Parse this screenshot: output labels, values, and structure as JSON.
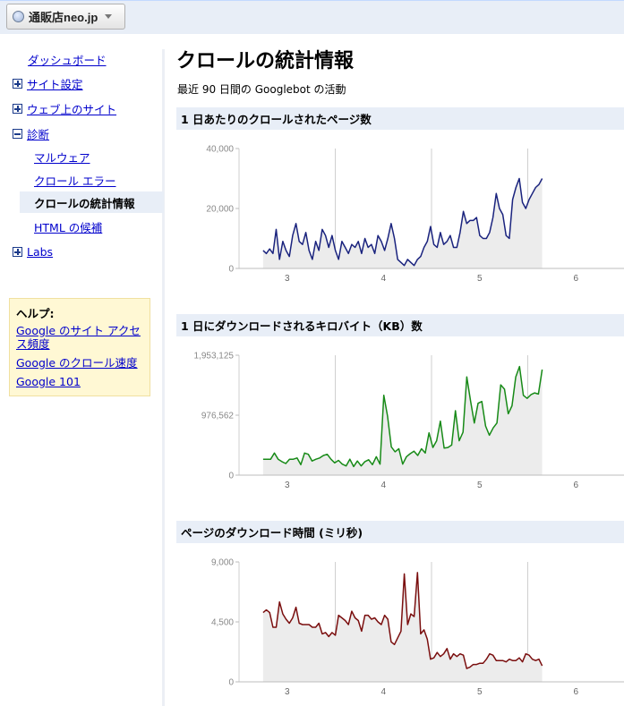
{
  "header": {
    "site_name": "通販店neo.jp"
  },
  "nav": {
    "dashboard": "ダッシュボード",
    "site_settings": "サイト設定",
    "on_web": "ウェブ上のサイト",
    "diagnostics": "診断",
    "malware": "マルウェア",
    "crawl_errors": "クロール エラー",
    "crawl_stats": "クロールの統計情報",
    "html_suggestions": "HTML の候補",
    "labs": "Labs"
  },
  "help": {
    "title": "ヘルプ:",
    "links": [
      "Google のサイト アクセス頻度",
      "Google のクロール速度",
      "Google 101"
    ]
  },
  "main": {
    "title": "クロールの統計情報",
    "subtitle": "最近 90 日間の Googlebot の活動"
  },
  "colors": {
    "pages": "#1a237e",
    "kb": "#178a17",
    "time": "#7a0e0e",
    "fill": "#ececec"
  },
  "chart_data": [
    {
      "type": "area",
      "title": "1 日あたりのクロールされたページ数",
      "y_ticks": [
        "0",
        "20,000",
        "40,000"
      ],
      "ylim": [
        0,
        40000
      ],
      "x_ticks": [
        "3",
        "4",
        "5",
        "6"
      ],
      "xlim": [
        2.75,
        5.65
      ],
      "color_key": "pages",
      "values": [
        6000,
        5000,
        6500,
        5000,
        13000,
        3000,
        9000,
        6000,
        4000,
        11000,
        15000,
        9000,
        8000,
        12000,
        6000,
        3000,
        9000,
        6000,
        13000,
        11000,
        7000,
        11000,
        6000,
        3000,
        9000,
        7000,
        5000,
        8000,
        7000,
        9000,
        5000,
        10000,
        7000,
        8000,
        5000,
        11000,
        9000,
        6000,
        10000,
        15000,
        10000,
        3000,
        2000,
        1000,
        3000,
        2000,
        1000,
        3000,
        4000,
        7000,
        9000,
        14000,
        8000,
        7000,
        12000,
        8000,
        9000,
        11000,
        7000,
        7000,
        12000,
        19000,
        15000,
        16000,
        16000,
        17000,
        11000,
        10000,
        10000,
        12000,
        17000,
        25000,
        20000,
        18000,
        11000,
        10000,
        23000,
        27000,
        30000,
        22000,
        20000,
        23000,
        25000,
        27000,
        28000,
        30000
      ]
    },
    {
      "type": "area",
      "title": "1 日にダウンロードされるキロバイト（KB）数",
      "y_ticks": [
        "0",
        "976,562",
        "1,953,125"
      ],
      "ylim": [
        0,
        1953125
      ],
      "x_ticks": [
        "3",
        "4",
        "5",
        "6"
      ],
      "xlim": [
        2.75,
        5.65
      ],
      "color_key": "kb",
      "values": [
        260000,
        260000,
        260000,
        360000,
        260000,
        220000,
        190000,
        260000,
        260000,
        280000,
        170000,
        360000,
        340000,
        230000,
        260000,
        280000,
        320000,
        340000,
        260000,
        200000,
        240000,
        180000,
        150000,
        260000,
        140000,
        230000,
        150000,
        220000,
        250000,
        170000,
        300000,
        180000,
        1300000,
        960000,
        460000,
        380000,
        430000,
        180000,
        300000,
        350000,
        390000,
        320000,
        430000,
        360000,
        690000,
        450000,
        560000,
        880000,
        440000,
        450000,
        490000,
        1050000,
        560000,
        700000,
        1600000,
        1210000,
        850000,
        1170000,
        1200000,
        800000,
        650000,
        770000,
        850000,
        1470000,
        1400000,
        1000000,
        1130000,
        1600000,
        1770000,
        1300000,
        1250000,
        1310000,
        1340000,
        1320000,
        1720000
      ]
    },
    {
      "type": "area",
      "title": "ページのダウンロード時間 (ミリ秒)",
      "y_ticks": [
        "0",
        "4,500",
        "9,000"
      ],
      "ylim": [
        0,
        9000
      ],
      "x_ticks": [
        "3",
        "4",
        "5",
        "6"
      ],
      "xlim": [
        2.75,
        5.65
      ],
      "color_key": "time",
      "values": [
        5200,
        5400,
        5200,
        4100,
        4100,
        6000,
        5100,
        4700,
        4400,
        4800,
        5600,
        4400,
        4300,
        4300,
        4300,
        4100,
        4100,
        4400,
        3600,
        3700,
        3400,
        3700,
        3500,
        5000,
        4800,
        4600,
        4300,
        5300,
        4800,
        4600,
        3800,
        5000,
        5000,
        4700,
        4800,
        4500,
        4300,
        5000,
        4700,
        3000,
        2800,
        3300,
        3800,
        8100,
        4300,
        5100,
        4900,
        8200,
        3600,
        3900,
        3200,
        1700,
        1800,
        2200,
        1900,
        2100,
        2500,
        1700,
        2100,
        1900,
        2100,
        2000,
        1000,
        1100,
        1300,
        1300,
        1400,
        1400,
        1700,
        2100,
        2000,
        1600,
        1600,
        1600,
        1500,
        1700,
        1600,
        1600,
        1800,
        1500,
        2100,
        2000,
        1700,
        1600,
        1700,
        1200
      ]
    }
  ]
}
